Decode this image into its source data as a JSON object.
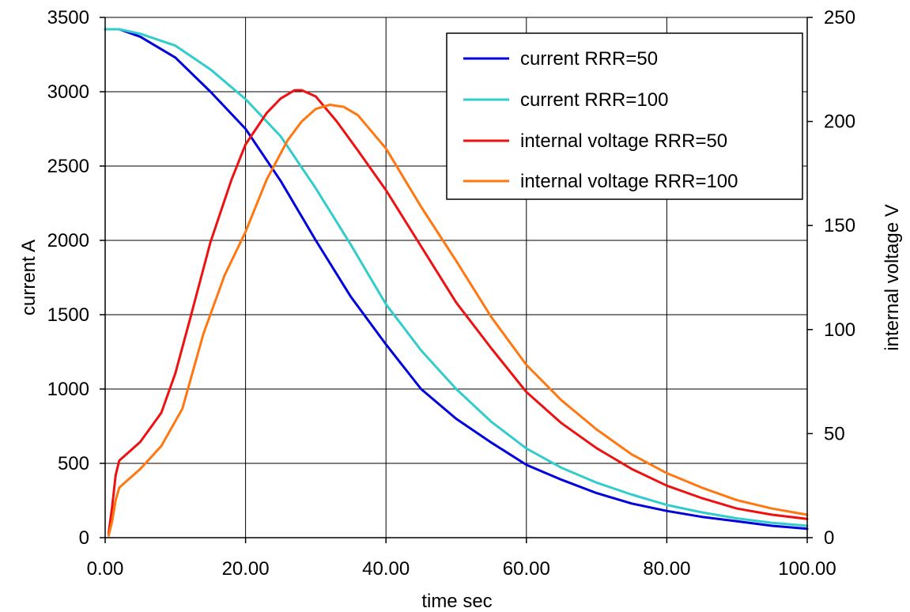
{
  "chart_data": {
    "type": "line",
    "xlabel": "time sec",
    "ylabel": "current A",
    "y2label": "internal voltage V",
    "xlim": [
      0,
      100
    ],
    "ylim": [
      0,
      3500
    ],
    "y2lim": [
      0,
      250
    ],
    "x_ticks": [
      "0.00",
      "20.00",
      "40.00",
      "60.00",
      "80.00",
      "100.00"
    ],
    "y_ticks": [
      "0",
      "500",
      "1000",
      "1500",
      "2000",
      "2500",
      "3000",
      "3500"
    ],
    "y2_ticks": [
      "0",
      "50",
      "100",
      "150",
      "200",
      "250"
    ],
    "grid": true,
    "legend_position": "top-right",
    "series": [
      {
        "name": "current RRR=50",
        "axis": "left",
        "color": "#0000dd",
        "x": [
          0,
          2,
          5,
          10,
          15,
          20,
          25,
          30,
          35,
          40,
          45,
          50,
          55,
          60,
          65,
          70,
          75,
          80,
          85,
          90,
          95,
          100
        ],
        "y": [
          3420,
          3420,
          3370,
          3230,
          3000,
          2750,
          2400,
          2000,
          1620,
          1300,
          1000,
          800,
          640,
          490,
          390,
          300,
          230,
          180,
          140,
          110,
          80,
          60
        ]
      },
      {
        "name": "current RRR=100",
        "axis": "left",
        "color": "#33cccc",
        "x": [
          0,
          2,
          5,
          10,
          15,
          20,
          25,
          30,
          35,
          40,
          45,
          50,
          55,
          60,
          65,
          70,
          75,
          80,
          85,
          90,
          95,
          100
        ],
        "y": [
          3420,
          3420,
          3390,
          3310,
          3150,
          2950,
          2700,
          2350,
          1970,
          1570,
          1260,
          1000,
          780,
          600,
          470,
          370,
          290,
          220,
          170,
          130,
          100,
          80
        ]
      },
      {
        "name": "internal voltage RRR=50",
        "axis": "right",
        "color": "#ee1111",
        "x": [
          0.5,
          1,
          1.5,
          2,
          3,
          5,
          8,
          10,
          12,
          15,
          18,
          20,
          23,
          25,
          27,
          28,
          30,
          33,
          36,
          40,
          45,
          50,
          55,
          60,
          65,
          70,
          75,
          80,
          85,
          90,
          95,
          100
        ],
        "y": [
          2,
          15,
          30,
          37,
          40,
          46,
          60,
          79,
          104,
          142,
          172,
          189,
          204,
          211,
          215,
          215,
          212,
          200,
          186,
          167,
          140,
          113,
          91,
          70,
          55,
          43,
          33,
          25,
          19,
          14,
          11,
          9
        ]
      },
      {
        "name": "internal voltage RRR=100",
        "axis": "right",
        "color": "#ff7711",
        "x": [
          0.5,
          1,
          1.5,
          2,
          3,
          5,
          8,
          11,
          14,
          17,
          20,
          23,
          26,
          28,
          30,
          32,
          34,
          36,
          40,
          45,
          50,
          55,
          60,
          65,
          70,
          75,
          80,
          85,
          90,
          95,
          100
        ],
        "y": [
          1,
          8,
          18,
          24,
          27,
          33,
          44,
          62,
          98,
          126,
          147,
          172,
          191,
          200,
          206,
          208,
          207,
          203,
          187,
          159,
          133,
          106,
          83,
          66,
          52,
          40,
          31,
          24,
          18,
          14,
          11
        ]
      }
    ]
  }
}
